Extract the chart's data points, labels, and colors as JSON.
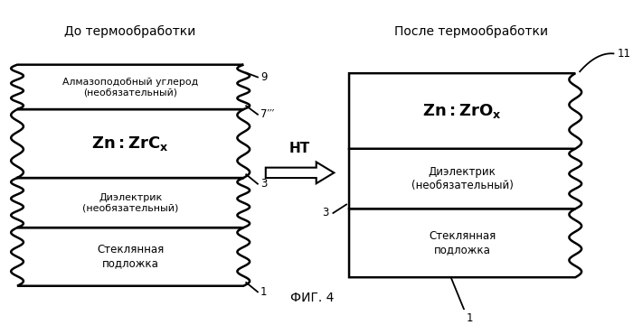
{
  "title_left": "До термообработки",
  "title_right": "После термообработки",
  "fig_label": "ФИГ. 4",
  "ht_label": "НТ",
  "bg_color": "#ffffff"
}
